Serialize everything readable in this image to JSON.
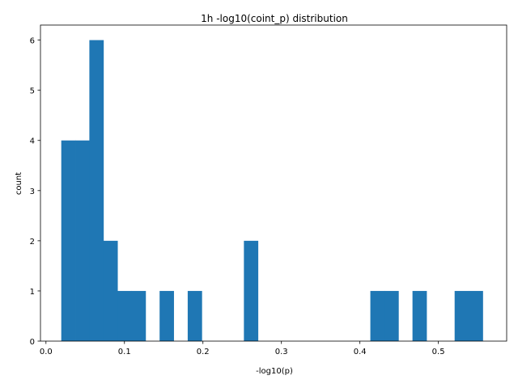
{
  "chart_data": {
    "type": "bar",
    "title": "1h  -log10(coint_p) distribution",
    "xlabel": "-log10(p)",
    "ylabel": "count",
    "xlim": [
      -0.007,
      0.587
    ],
    "ylim": [
      0,
      6.3
    ],
    "xticks": [
      0.0,
      0.1,
      0.2,
      0.3,
      0.4,
      0.5
    ],
    "xtick_labels": [
      "0.0",
      "0.1",
      "0.2",
      "0.3",
      "0.4",
      "0.5"
    ],
    "yticks": [
      0,
      1,
      2,
      3,
      4,
      5,
      6
    ],
    "ytick_labels": [
      "0",
      "1",
      "2",
      "3",
      "4",
      "5",
      "6"
    ],
    "grid": false,
    "color": "#1f77b4",
    "bins": [
      {
        "x0": 0.0195,
        "x1": 0.0374,
        "count": 4
      },
      {
        "x0": 0.0374,
        "x1": 0.0553,
        "count": 4
      },
      {
        "x0": 0.0553,
        "x1": 0.0732,
        "count": 6
      },
      {
        "x0": 0.0732,
        "x1": 0.0911,
        "count": 2
      },
      {
        "x0": 0.0911,
        "x1": 0.109,
        "count": 1
      },
      {
        "x0": 0.109,
        "x1": 0.1269,
        "count": 1
      },
      {
        "x0": 0.1269,
        "x1": 0.1448,
        "count": 0
      },
      {
        "x0": 0.1448,
        "x1": 0.1627,
        "count": 1
      },
      {
        "x0": 0.1627,
        "x1": 0.1806,
        "count": 0
      },
      {
        "x0": 0.1806,
        "x1": 0.1985,
        "count": 1
      },
      {
        "x0": 0.1985,
        "x1": 0.2164,
        "count": 0
      },
      {
        "x0": 0.2164,
        "x1": 0.2343,
        "count": 0
      },
      {
        "x0": 0.2343,
        "x1": 0.2522,
        "count": 0
      },
      {
        "x0": 0.2522,
        "x1": 0.2701,
        "count": 2
      },
      {
        "x0": 0.2701,
        "x1": 0.288,
        "count": 0
      },
      {
        "x0": 0.288,
        "x1": 0.3059,
        "count": 0
      },
      {
        "x0": 0.3059,
        "x1": 0.3238,
        "count": 0
      },
      {
        "x0": 0.3238,
        "x1": 0.3417,
        "count": 0
      },
      {
        "x0": 0.3417,
        "x1": 0.3596,
        "count": 0
      },
      {
        "x0": 0.3596,
        "x1": 0.3775,
        "count": 0
      },
      {
        "x0": 0.3775,
        "x1": 0.3954,
        "count": 0
      },
      {
        "x0": 0.3954,
        "x1": 0.4133,
        "count": 0
      },
      {
        "x0": 0.4133,
        "x1": 0.4312,
        "count": 1
      },
      {
        "x0": 0.4312,
        "x1": 0.4491,
        "count": 1
      },
      {
        "x0": 0.4491,
        "x1": 0.467,
        "count": 0
      },
      {
        "x0": 0.467,
        "x1": 0.4849,
        "count": 1
      },
      {
        "x0": 0.4849,
        "x1": 0.5028,
        "count": 0
      },
      {
        "x0": 0.5028,
        "x1": 0.5207,
        "count": 0
      },
      {
        "x0": 0.5207,
        "x1": 0.5386,
        "count": 1
      },
      {
        "x0": 0.5386,
        "x1": 0.5565,
        "count": 1
      }
    ]
  }
}
